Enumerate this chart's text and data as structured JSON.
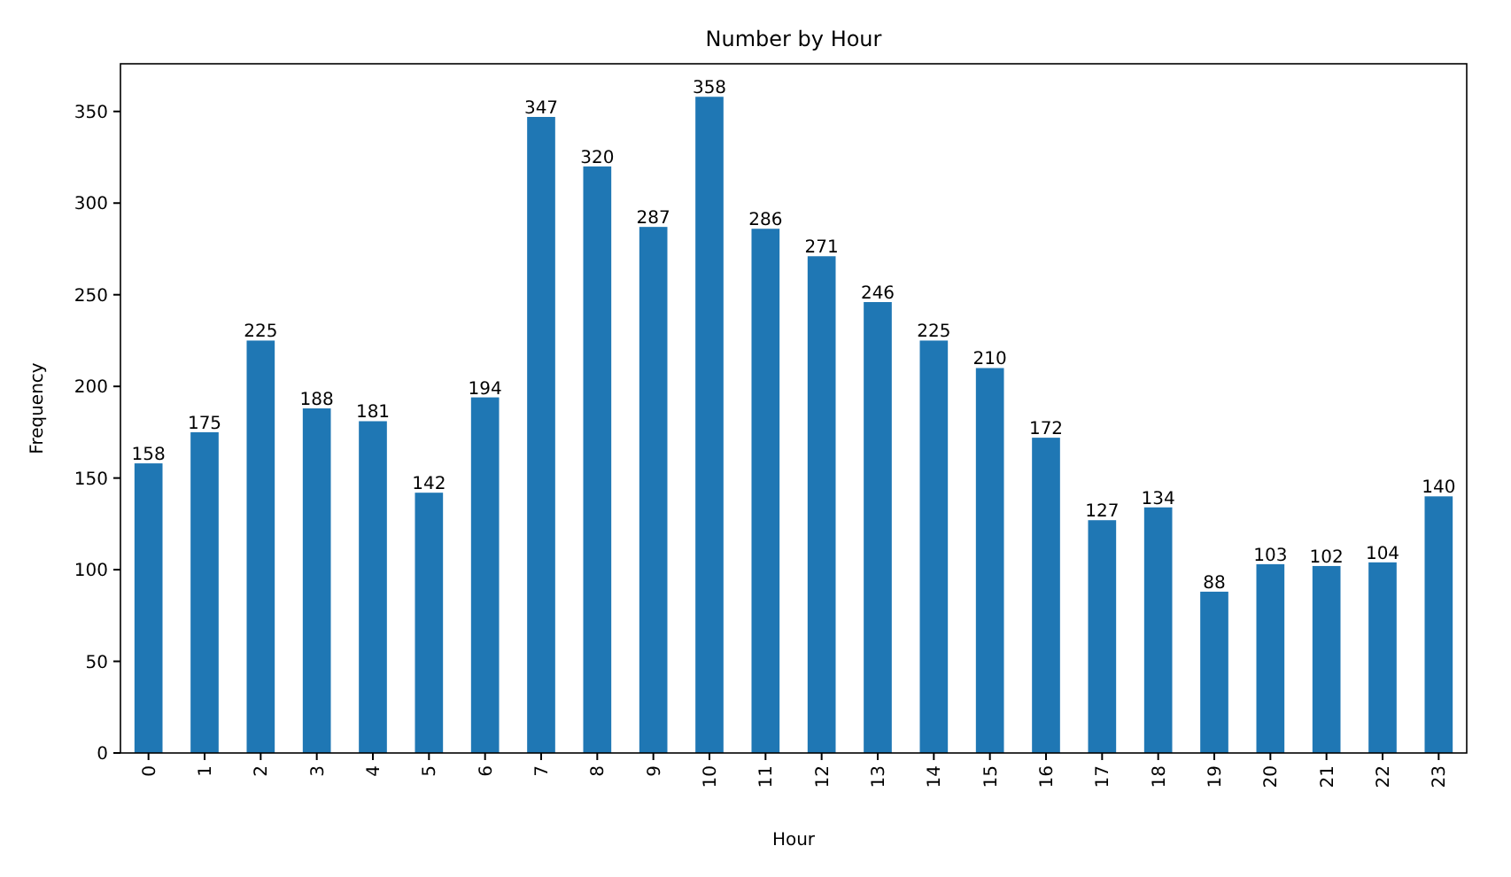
{
  "chart_data": {
    "type": "bar",
    "title": "Number by Hour",
    "xlabel": "Hour",
    "ylabel": "Frequency",
    "categories": [
      "0",
      "1",
      "2",
      "3",
      "4",
      "5",
      "6",
      "7",
      "8",
      "9",
      "10",
      "11",
      "12",
      "13",
      "14",
      "15",
      "16",
      "17",
      "18",
      "19",
      "20",
      "21",
      "22",
      "23"
    ],
    "values": [
      158,
      175,
      225,
      188,
      181,
      142,
      194,
      347,
      320,
      287,
      358,
      286,
      271,
      246,
      225,
      210,
      172,
      127,
      134,
      88,
      103,
      102,
      104,
      140
    ],
    "color": "#1f77b4",
    "ylim": [
      0,
      376
    ],
    "yticks": [
      0,
      50,
      100,
      150,
      200,
      250,
      300,
      350
    ],
    "data_labels": true,
    "grid": false
  }
}
